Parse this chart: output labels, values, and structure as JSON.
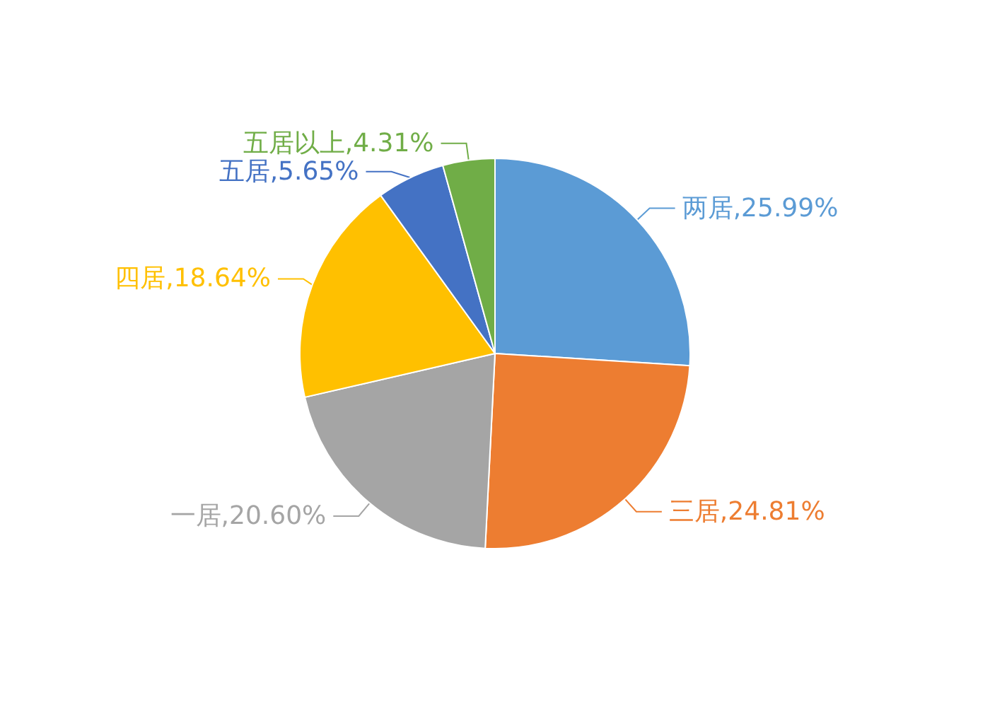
{
  "chart_data": {
    "type": "pie",
    "categories": [
      "两居",
      "三居",
      "一居",
      "四居",
      "五居",
      "五居以上"
    ],
    "values": [
      25.99,
      24.81,
      20.6,
      18.64,
      5.65,
      4.31
    ],
    "value_labels": [
      "25.99%",
      "24.81%",
      "20.60%",
      "18.64%",
      "5.65%",
      "4.31%"
    ],
    "colors": [
      "#5b9bd5",
      "#ed7d31",
      "#a5a5a5",
      "#ffc000",
      "#4472c4",
      "#70ad47"
    ],
    "legend": false
  }
}
